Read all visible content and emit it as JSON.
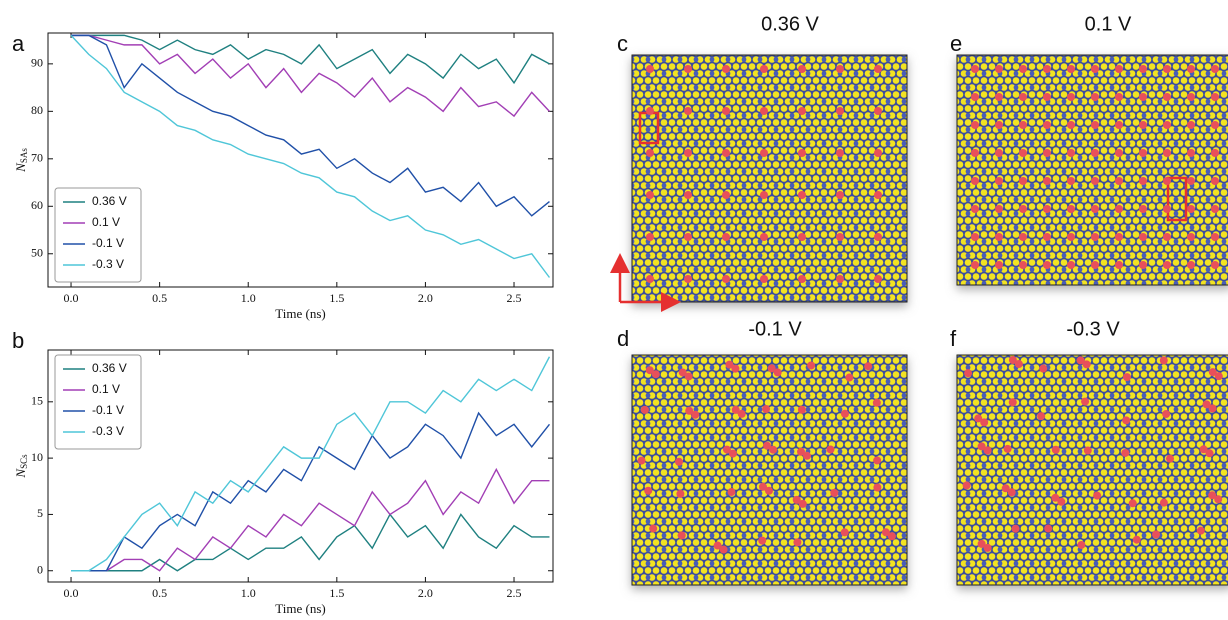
{
  "chart_data": [
    {
      "type": "line",
      "panel": "a",
      "xlabel": "Time (ns)",
      "ylabel": "N",
      "ylabel_subscript": "SAs",
      "xlim": [
        -0.13,
        2.72
      ],
      "ylim": [
        43,
        96.5
      ],
      "xticks": [
        {
          "value": 0,
          "label": "0.0"
        },
        0.5,
        {
          "value": 1,
          "label": "1.0"
        },
        1.5,
        {
          "value": 2,
          "label": "2.0"
        },
        2.5
      ],
      "yticks": [
        50,
        60,
        70,
        80,
        90
      ],
      "legend": "lower left",
      "x": [
        0,
        0.1,
        0.2,
        0.3,
        0.4,
        0.5,
        0.6,
        0.7,
        0.8,
        0.9,
        1,
        1.1,
        1.2,
        1.3,
        1.4,
        1.5,
        1.6,
        1.7,
        1.8,
        1.9,
        2,
        2.1,
        2.2,
        2.3,
        2.4,
        2.5,
        2.6,
        2.7
      ],
      "series": [
        {
          "name": "0.36 V",
          "color": "#1f8080",
          "values": [
            96,
            96,
            96,
            96,
            95,
            93,
            95,
            93,
            92,
            94,
            91,
            93,
            92,
            90,
            94,
            89,
            91,
            93,
            88,
            92,
            90,
            87,
            92,
            89,
            91,
            86,
            92,
            90
          ]
        },
        {
          "name": "0.1 V",
          "color": "#a23fb5",
          "values": [
            96,
            96,
            95,
            94,
            94,
            90,
            92,
            88,
            91,
            87,
            90,
            85,
            89,
            84,
            88,
            86,
            83,
            87,
            82,
            85,
            83,
            80,
            85,
            81,
            82,
            79,
            84,
            80
          ]
        },
        {
          "name": "-0.1 V",
          "color": "#2050a8",
          "values": [
            96,
            96,
            94,
            85,
            90,
            87,
            84,
            82,
            80,
            79,
            77,
            75,
            74,
            71,
            72,
            68,
            70,
            67,
            65,
            68,
            63,
            64,
            61,
            65,
            60,
            62,
            58,
            61
          ]
        },
        {
          "name": "-0.3 V",
          "color": "#4fc6d8",
          "values": [
            96,
            92,
            89,
            84,
            82,
            80,
            77,
            76,
            74,
            73,
            71,
            70,
            69,
            67,
            66,
            63,
            62,
            59,
            57,
            58,
            55,
            54,
            52,
            53,
            51,
            49,
            50,
            45
          ]
        }
      ]
    },
    {
      "type": "line",
      "panel": "b",
      "xlabel": "Time (ns)",
      "ylabel": "N",
      "ylabel_subscript": "SCs",
      "xlim": [
        -0.13,
        2.72
      ],
      "ylim": [
        -1,
        19.6
      ],
      "xticks": [
        {
          "value": 0,
          "label": "0.0"
        },
        0.5,
        {
          "value": 1,
          "label": "1.0"
        },
        1.5,
        {
          "value": 2,
          "label": "2.0"
        },
        2.5
      ],
      "yticks": [
        0,
        5,
        10,
        15
      ],
      "legend": "upper left",
      "x": [
        0,
        0.1,
        0.2,
        0.3,
        0.4,
        0.5,
        0.6,
        0.7,
        0.8,
        0.9,
        1,
        1.1,
        1.2,
        1.3,
        1.4,
        1.5,
        1.6,
        1.7,
        1.8,
        1.9,
        2,
        2.1,
        2.2,
        2.3,
        2.4,
        2.5,
        2.6,
        2.7
      ],
      "series": [
        {
          "name": "0.36 V",
          "color": "#1f8080",
          "values": [
            0,
            0,
            0,
            0,
            0,
            1,
            0,
            1,
            1,
            2,
            1,
            2,
            2,
            3,
            1,
            3,
            4,
            2,
            5,
            3,
            4,
            2,
            5,
            3,
            2,
            4,
            3,
            3
          ]
        },
        {
          "name": "0.1 V",
          "color": "#a23fb5",
          "values": [
            0,
            0,
            0,
            1,
            1,
            0,
            2,
            1,
            3,
            2,
            4,
            3,
            5,
            4,
            6,
            5,
            4,
            7,
            5,
            6,
            8,
            5,
            7,
            6,
            9,
            6,
            8,
            8
          ]
        },
        {
          "name": "-0.1 V",
          "color": "#2050a8",
          "values": [
            0,
            0,
            0,
            3,
            2,
            4,
            5,
            4,
            7,
            6,
            8,
            7,
            9,
            8,
            11,
            10,
            9,
            12,
            10,
            11,
            13,
            12,
            10,
            14,
            12,
            13,
            11,
            13
          ]
        },
        {
          "name": "-0.3 V",
          "color": "#4fc6d8",
          "values": [
            0,
            0,
            1,
            3,
            5,
            6,
            4,
            7,
            6,
            8,
            7,
            9,
            11,
            10,
            10,
            13,
            14,
            12,
            15,
            15,
            14,
            16,
            15,
            17,
            16,
            17,
            16,
            19
          ]
        }
      ]
    }
  ],
  "panels": [
    {
      "letter": "c",
      "label": "0.36 V"
    },
    {
      "letter": "e",
      "label": "0.1 V"
    },
    {
      "letter": "d",
      "label": "-0.1 V"
    },
    {
      "letter": "f",
      "label": "-0.3 V"
    }
  ]
}
